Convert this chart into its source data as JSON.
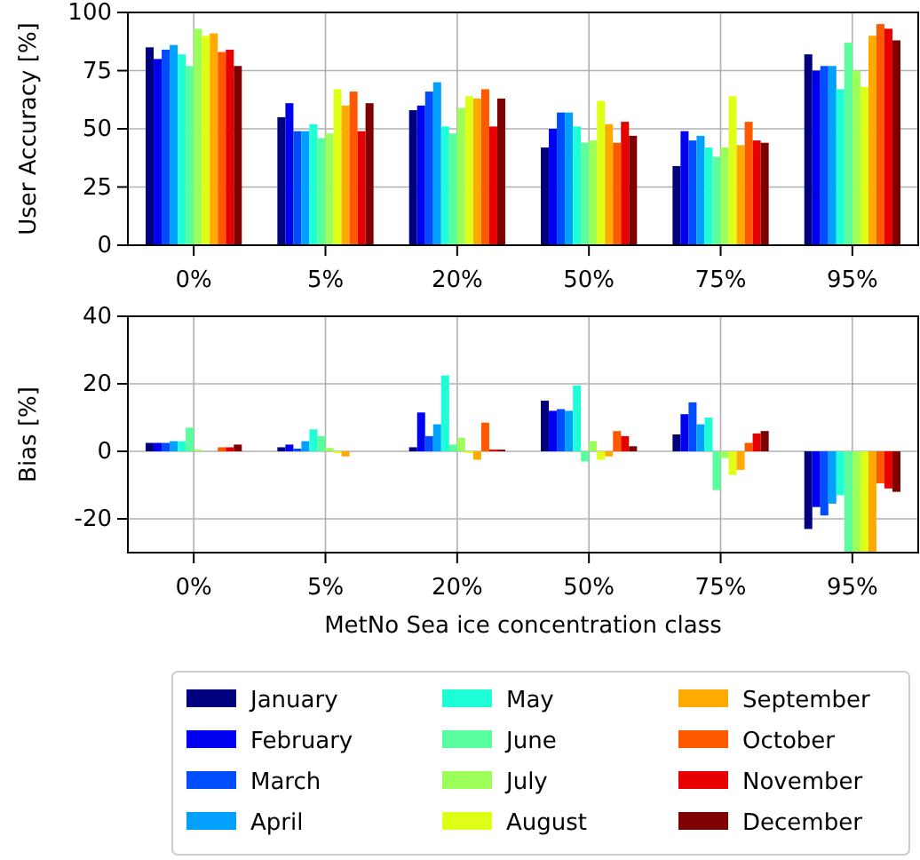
{
  "chart_data": [
    {
      "type": "bar",
      "ylabel": "User Accuracy [%]",
      "categories": [
        "0%",
        "5%",
        "20%",
        "50%",
        "75%",
        "95%"
      ],
      "ylim": [
        0,
        100
      ],
      "yticks": [
        0,
        25,
        50,
        75,
        100
      ],
      "grid": true,
      "series": [
        {
          "color": "#00007f",
          "values": [
            85,
            55,
            58,
            42,
            34,
            82
          ]
        },
        {
          "color": "#0000f1",
          "values": [
            80,
            61,
            60,
            50,
            49,
            75
          ]
        },
        {
          "color": "#004cff",
          "values": [
            84,
            49,
            66,
            57,
            45,
            77
          ]
        },
        {
          "color": "#00a0ff",
          "values": [
            86,
            49,
            70,
            57,
            47,
            77
          ]
        },
        {
          "color": "#1fffd7",
          "values": [
            82,
            52,
            51,
            51,
            42,
            67
          ]
        },
        {
          "color": "#59ff9c",
          "values": [
            77,
            46,
            48,
            44,
            38,
            87
          ]
        },
        {
          "color": "#9cff59",
          "values": [
            93,
            48,
            59,
            45,
            42,
            75
          ]
        },
        {
          "color": "#e0ff16",
          "values": [
            90,
            67,
            64,
            62,
            64,
            68
          ]
        },
        {
          "color": "#ffaa00",
          "values": [
            91,
            60,
            63,
            52,
            43,
            90
          ]
        },
        {
          "color": "#ff5900",
          "values": [
            83,
            66,
            67,
            44,
            53,
            95
          ]
        },
        {
          "color": "#e60000",
          "values": [
            84,
            49,
            51,
            53,
            45,
            93
          ]
        },
        {
          "color": "#7f0000",
          "values": [
            77,
            61,
            63,
            47,
            44,
            88
          ]
        }
      ]
    },
    {
      "type": "bar",
      "ylabel": "Bias [%]",
      "xlabel": "MetNo Sea ice concentration class",
      "categories": [
        "0%",
        "5%",
        "20%",
        "50%",
        "75%",
        "95%"
      ],
      "ylim": [
        -30,
        40
      ],
      "yticks": [
        -20,
        0,
        20,
        40
      ],
      "grid": true,
      "legend": "bottom",
      "series": [
        {
          "name": "January",
          "color": "#00007f",
          "values": [
            2.5,
            1.2,
            1.2,
            15,
            5,
            -23
          ]
        },
        {
          "name": "February",
          "color": "#0000f1",
          "values": [
            2.5,
            2,
            11.5,
            12,
            11,
            -16.5
          ]
        },
        {
          "name": "March",
          "color": "#004cff",
          "values": [
            2.5,
            0.8,
            4.5,
            12.5,
            14.5,
            -19
          ]
        },
        {
          "name": "April",
          "color": "#00a0ff",
          "values": [
            3,
            3,
            8,
            12,
            8,
            -15.5
          ]
        },
        {
          "name": "May",
          "color": "#1fffd7",
          "values": [
            3,
            6.5,
            22.5,
            19.5,
            10,
            -13
          ]
        },
        {
          "name": "June",
          "color": "#59ff9c",
          "values": [
            7,
            4.5,
            2,
            -3,
            -11.5,
            -30
          ]
        },
        {
          "name": "July",
          "color": "#9cff59",
          "values": [
            0.5,
            1,
            4,
            3,
            -2,
            -30
          ]
        },
        {
          "name": "August",
          "color": "#e0ff16",
          "values": [
            0,
            -0.5,
            -0.5,
            -2.5,
            -7,
            -30
          ]
        },
        {
          "name": "September",
          "color": "#ffaa00",
          "values": [
            0,
            -1.5,
            -2.5,
            -1.5,
            -5.5,
            -30
          ]
        },
        {
          "name": "October",
          "color": "#ff5900",
          "values": [
            1.2,
            0,
            8.5,
            6,
            2.5,
            -9.5
          ]
        },
        {
          "name": "November",
          "color": "#e60000",
          "values": [
            1.2,
            0,
            0.5,
            4.5,
            5.3,
            -11
          ]
        },
        {
          "name": "December",
          "color": "#7f0000",
          "values": [
            2,
            0,
            0.5,
            1.5,
            6,
            -12
          ]
        }
      ]
    }
  ]
}
